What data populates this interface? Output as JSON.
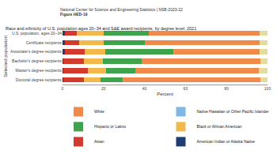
{
  "chart_data": {
    "type": "bar",
    "orientation": "horizontal",
    "stacked": true,
    "header": "National Center for Science and Engineering Statistics | NSB-2023-22",
    "figure_label": "Figure HED-19",
    "title": "Race and ethnicity of U.S. population ages 20–34 and S&E award recipients, by degree level: 2021",
    "x_label": "Percent",
    "y_label": "Selected population",
    "categories": [
      "U.S. population, ages 20–34",
      "Certificate recipients",
      "Associate's degree recipients",
      "Bachelor's degree recipients",
      "Master's degree recipients",
      "Doctoral degree recipients"
    ],
    "xlim": [
      0,
      100
    ],
    "xticks": [
      0,
      20,
      40,
      60,
      80,
      100
    ],
    "grid": false,
    "legend": "bottom",
    "series": [
      {
        "name": "American Indian or Alaska Native",
        "color": "#1f3d73",
        "values": [
          1,
          1,
          1,
          0.5,
          0.4,
          0.4
        ]
      },
      {
        "name": "Asian",
        "color": "#d23a2e",
        "values": [
          6,
          7,
          10,
          10,
          12,
          10
        ]
      },
      {
        "name": "Black or African American",
        "color": "#f2b84b",
        "values": [
          13,
          12,
          10,
          9,
          9,
          8
        ]
      },
      {
        "name": "Hispanic or Latino",
        "color": "#3fa34d",
        "values": [
          22,
          20,
          33,
          19,
          14,
          11
        ]
      },
      {
        "name": "Native Hawaiian or Other Pacific Islander",
        "color": "#7db9e3",
        "values": [
          0.2,
          0.3,
          0.3,
          0.2,
          0.2,
          0.2
        ]
      },
      {
        "name": "White",
        "color": "#f08a4b",
        "values": [
          53.8,
          56,
          42,
          58,
          60,
          67
        ]
      },
      {
        "name": null,
        "color": "#e3dc9c",
        "values": [
          4,
          3.7,
          3.7,
          3.3,
          4.4,
          3.4
        ]
      }
    ]
  }
}
